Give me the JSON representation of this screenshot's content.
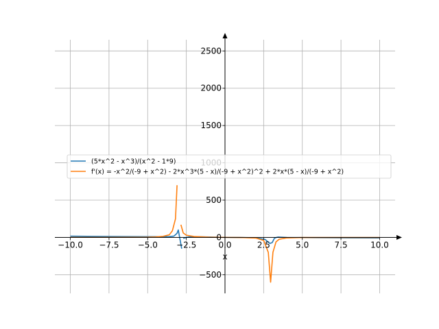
{
  "chart_data": {
    "type": "line",
    "title": "",
    "xlabel": "x",
    "ylabel": "",
    "xlim": [
      -11,
      11
    ],
    "ylim": [
      -750,
      2650
    ],
    "grid": true,
    "legend_position": "center-left",
    "x_ticks": [
      -10,
      -7.5,
      -5,
      -2.5,
      0,
      2.5,
      5,
      7.5,
      10
    ],
    "x_tick_labels": [
      "−10.0",
      "−7.5",
      "−5.0",
      "−2.5",
      "0.0",
      "2.5",
      "5.0",
      "7.5",
      "10.0"
    ],
    "y_ticks": [
      -500,
      0,
      500,
      1000,
      1500,
      2000,
      2500
    ],
    "y_tick_labels": [
      "−500",
      "0",
      "500",
      "1000",
      "1500",
      "2000",
      "2500"
    ],
    "colors": {
      "series1": "#1f77b4",
      "series2": "#ff7f0e",
      "grid": "#b0b0b0",
      "axis": "#000000"
    },
    "series": [
      {
        "name": "(5*x^2 - x^3)/(x^2 - 1*9)",
        "segments": [
          [
            [
              -10,
              16.5
            ],
            [
              -8,
              13.8
            ],
            [
              -6,
              11.5
            ],
            [
              -5,
              10.3
            ],
            [
              -4,
              10.3
            ],
            [
              -3.6,
              11.5
            ],
            [
              -3.3,
              18
            ],
            [
              -3.1,
              55
            ],
            [
              -3.02,
              100
            ],
            [
              -2.8,
              -150
            ]
          ],
          [
            [
              -2.7,
              -12
            ],
            [
              -2.4,
              5
            ],
            [
              -2,
              9.5
            ],
            [
              -1,
              5.5
            ],
            [
              0,
              0
            ],
            [
              1,
              -1.3
            ],
            [
              2,
              -5.6
            ],
            [
              2.6,
              -28
            ],
            [
              2.9,
              -80
            ],
            [
              3.05,
              -70
            ],
            [
              3.2,
              -10
            ],
            [
              3.4,
              5
            ]
          ],
          [
            [
              3.4,
              5
            ],
            [
              3.6,
              2.5
            ],
            [
              4,
              -1.1
            ],
            [
              5,
              -3.1
            ],
            [
              6,
              -4.5
            ],
            [
              8,
              -6
            ],
            [
              10,
              -7.6
            ]
          ]
        ]
      },
      {
        "name": "f'(x) = -x^2/(-9 + x^2) - 2*x^3*(5 - x)/(-9 + x^2)^2 + 2*x*(5 - x)/(-9 + x^2)",
        "segments": [
          [
            [
              -10,
              1.1
            ],
            [
              -8,
              1.1
            ],
            [
              -6,
              1.8
            ],
            [
              -5,
              3.5
            ],
            [
              -4.5,
              7
            ],
            [
              -4,
              15
            ],
            [
              -3.6,
              35
            ],
            [
              -3.4,
              90
            ],
            [
              -3.2,
              250
            ],
            [
              -3.1,
              700
            ]
          ],
          [
            [
              -2.85,
              170
            ],
            [
              -2.7,
              60
            ],
            [
              -2.5,
              30
            ],
            [
              -2,
              12
            ],
            [
              -1,
              3
            ],
            [
              0,
              0
            ],
            [
              1,
              -1.5
            ],
            [
              2,
              -9
            ],
            [
              2.5,
              -40
            ],
            [
              2.8,
              -200
            ],
            [
              2.95,
              -600
            ],
            [
              3.1,
              -200
            ],
            [
              3.3,
              -60
            ],
            [
              3.5,
              -25
            ],
            [
              4,
              -7
            ],
            [
              5,
              -2
            ],
            [
              6,
              -1.2
            ],
            [
              8,
              -1
            ],
            [
              10,
              -1
            ]
          ]
        ]
      }
    ]
  }
}
